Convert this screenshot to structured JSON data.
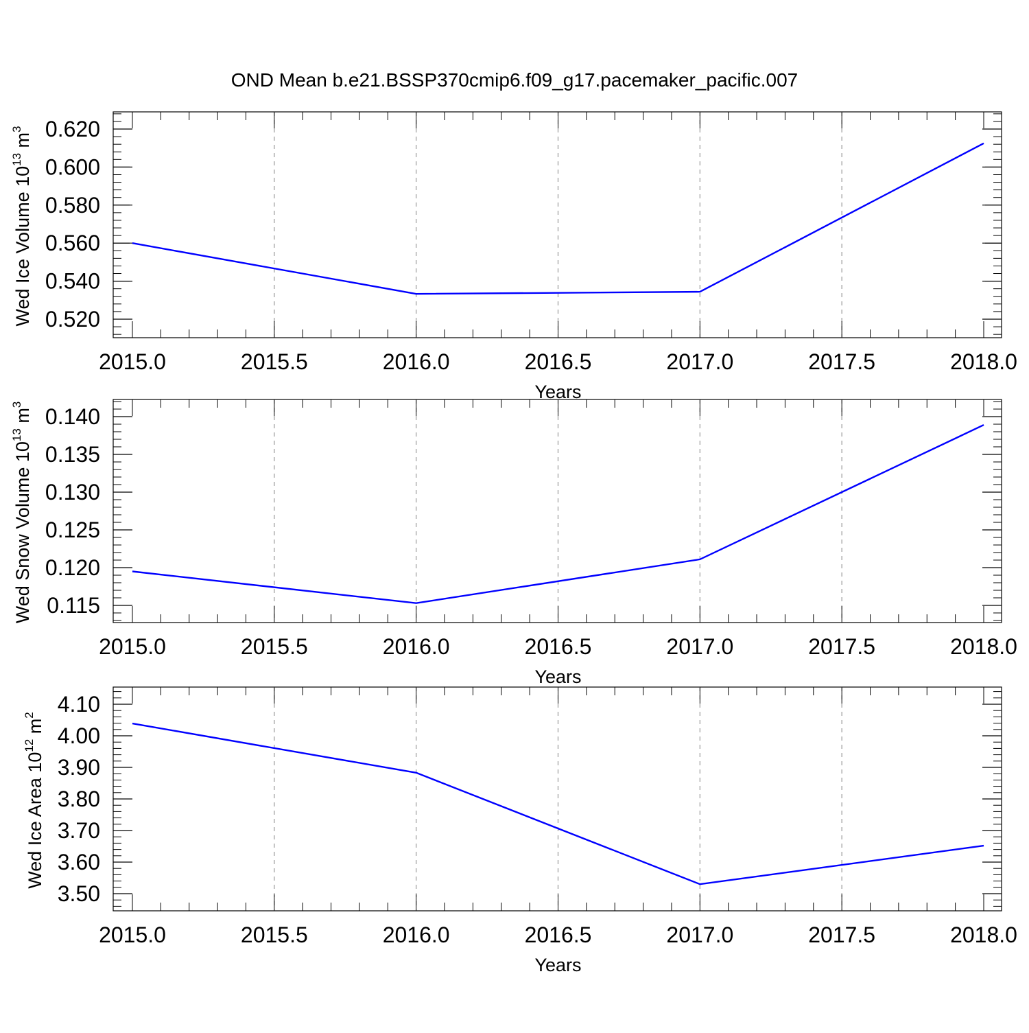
{
  "title": "OND Mean b.e21.BSSP370cmip6.f09_g17.pacemaker_pacific.007",
  "chart_data": [
    {
      "type": "line",
      "xlabel": "Years",
      "ylabel_main": "Wed Ice Volume 10",
      "ylabel_exp": "13",
      "ylabel_unit": " m",
      "ylabel_unit_exp": "3",
      "xlim": [
        2015.0,
        2018.0
      ],
      "ylim": [
        0.52,
        0.625
      ],
      "xticks": [
        "2015.0",
        "2015.5",
        "2016.0",
        "2016.5",
        "2017.0",
        "2017.5",
        "2018.0"
      ],
      "yticks": [
        "0.520",
        "0.540",
        "0.560",
        "0.580",
        "0.600",
        "0.620"
      ],
      "x": [
        2015,
        2016,
        2017,
        2018
      ],
      "series": [
        {
          "values": [
            0.56,
            0.5333,
            0.5344,
            0.6125
          ],
          "color": "#0000ff"
        }
      ],
      "grid": "vertical dashed at major x ticks"
    },
    {
      "type": "line",
      "xlabel": "Years",
      "ylabel_main": "Wed Snow Volume 10",
      "ylabel_exp": "13",
      "ylabel_unit": " m",
      "ylabel_unit_exp": "3",
      "xlim": [
        2015.0,
        2018.0
      ],
      "ylim": [
        0.112,
        0.14
      ],
      "xticks": [
        "2015.0",
        "2015.5",
        "2016.0",
        "2016.5",
        "2017.0",
        "2017.5",
        "2018.0"
      ],
      "yticks": [
        "0.115",
        "0.120",
        "0.125",
        "0.130",
        "0.135",
        "0.140"
      ],
      "x": [
        2015,
        2016,
        2017,
        2018
      ],
      "series": [
        {
          "values": [
            0.1195,
            0.1153,
            0.1211,
            0.1389
          ],
          "color": "#0000ff"
        }
      ],
      "grid": "vertical dashed at major x ticks"
    },
    {
      "type": "line",
      "xlabel": "Years",
      "ylabel_main": "Wed Ice Area 10",
      "ylabel_exp": "12",
      "ylabel_unit": " m",
      "ylabel_unit_exp": "2",
      "xlim": [
        2015.0,
        2018.0
      ],
      "ylim": [
        3.5,
        4.1
      ],
      "xticks": [
        "2015.0",
        "2015.5",
        "2016.0",
        "2016.5",
        "2017.0",
        "2017.5",
        "2018.0"
      ],
      "yticks": [
        "3.50",
        "3.60",
        "3.70",
        "3.80",
        "3.90",
        "4.00",
        "4.10"
      ],
      "x": [
        2015,
        2016,
        2017,
        2018
      ],
      "series": [
        {
          "values": [
            4.039,
            3.883,
            3.53,
            3.652
          ],
          "color": "#0000ff"
        }
      ],
      "grid": "vertical dashed at major x ticks"
    }
  ]
}
